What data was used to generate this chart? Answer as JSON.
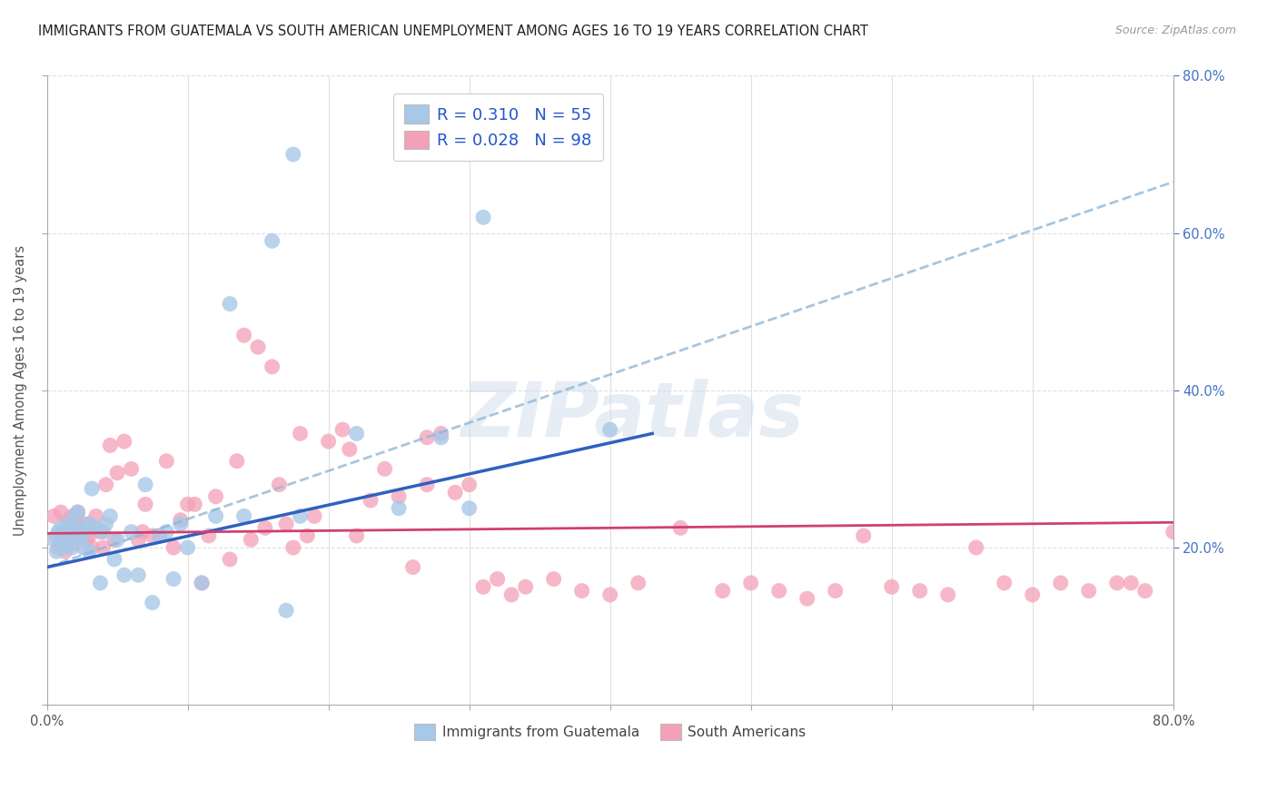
{
  "title": "IMMIGRANTS FROM GUATEMALA VS SOUTH AMERICAN UNEMPLOYMENT AMONG AGES 16 TO 19 YEARS CORRELATION CHART",
  "source": "Source: ZipAtlas.com",
  "ylabel": "Unemployment Among Ages 16 to 19 years",
  "legend_label1": "R = 0.310   N = 55",
  "legend_label2": "R = 0.028   N = 98",
  "legend_bottom1": "Immigrants from Guatemala",
  "legend_bottom2": "South Americans",
  "R_blue": 0.31,
  "N_blue": 55,
  "R_pink": 0.028,
  "N_pink": 98,
  "xlim": [
    0.0,
    0.8
  ],
  "ylim": [
    0.0,
    0.8
  ],
  "color_blue": "#a8c8e8",
  "color_pink": "#f4a0b8",
  "line_blue": "#3060c0",
  "line_pink": "#d04070",
  "line_dashed_color": "#90b8d8",
  "watermark": "ZIPatlas",
  "background_color": "#ffffff",
  "grid_color": "#e0e0e0",
  "blue_line_x0": 0.0,
  "blue_line_x1": 0.43,
  "blue_line_y0": 0.175,
  "blue_line_y1": 0.345,
  "dash_line_x0": 0.0,
  "dash_line_x1": 0.8,
  "dash_line_y0": 0.175,
  "dash_line_y1": 0.665,
  "pink_line_x0": 0.0,
  "pink_line_x1": 0.8,
  "pink_line_y0": 0.218,
  "pink_line_y1": 0.232,
  "blue_x": [
    0.005,
    0.007,
    0.008,
    0.009,
    0.01,
    0.01,
    0.012,
    0.013,
    0.015,
    0.015,
    0.016,
    0.018,
    0.018,
    0.02,
    0.02,
    0.022,
    0.022,
    0.024,
    0.025,
    0.026,
    0.028,
    0.03,
    0.03,
    0.032,
    0.035,
    0.038,
    0.04,
    0.042,
    0.045,
    0.048,
    0.05,
    0.055,
    0.06,
    0.065,
    0.07,
    0.075,
    0.08,
    0.085,
    0.09,
    0.095,
    0.1,
    0.11,
    0.12,
    0.13,
    0.14,
    0.16,
    0.17,
    0.175,
    0.18,
    0.22,
    0.25,
    0.28,
    0.3,
    0.31,
    0.4
  ],
  "blue_y": [
    0.21,
    0.195,
    0.22,
    0.215,
    0.205,
    0.225,
    0.215,
    0.2,
    0.215,
    0.23,
    0.22,
    0.225,
    0.2,
    0.24,
    0.215,
    0.22,
    0.245,
    0.22,
    0.215,
    0.2,
    0.225,
    0.23,
    0.195,
    0.275,
    0.225,
    0.155,
    0.22,
    0.23,
    0.24,
    0.185,
    0.21,
    0.165,
    0.22,
    0.165,
    0.28,
    0.13,
    0.215,
    0.22,
    0.16,
    0.23,
    0.2,
    0.155,
    0.24,
    0.51,
    0.24,
    0.59,
    0.12,
    0.7,
    0.24,
    0.345,
    0.25,
    0.34,
    0.25,
    0.62,
    0.35
  ],
  "pink_x": [
    0.005,
    0.007,
    0.008,
    0.01,
    0.01,
    0.012,
    0.013,
    0.015,
    0.015,
    0.016,
    0.018,
    0.018,
    0.02,
    0.02,
    0.022,
    0.022,
    0.024,
    0.025,
    0.026,
    0.028,
    0.03,
    0.03,
    0.032,
    0.035,
    0.038,
    0.04,
    0.042,
    0.045,
    0.048,
    0.05,
    0.055,
    0.06,
    0.065,
    0.068,
    0.07,
    0.075,
    0.08,
    0.085,
    0.09,
    0.095,
    0.1,
    0.105,
    0.11,
    0.115,
    0.12,
    0.13,
    0.135,
    0.14,
    0.145,
    0.15,
    0.155,
    0.16,
    0.165,
    0.17,
    0.175,
    0.18,
    0.185,
    0.19,
    0.2,
    0.21,
    0.215,
    0.22,
    0.23,
    0.24,
    0.25,
    0.26,
    0.27,
    0.27,
    0.28,
    0.29,
    0.3,
    0.31,
    0.32,
    0.33,
    0.34,
    0.36,
    0.38,
    0.4,
    0.42,
    0.45,
    0.48,
    0.5,
    0.52,
    0.54,
    0.56,
    0.58,
    0.6,
    0.62,
    0.64,
    0.66,
    0.68,
    0.7,
    0.72,
    0.74,
    0.76,
    0.77,
    0.78,
    0.8
  ],
  "pink_y": [
    0.24,
    0.215,
    0.2,
    0.215,
    0.245,
    0.22,
    0.195,
    0.21,
    0.235,
    0.225,
    0.215,
    0.24,
    0.205,
    0.23,
    0.225,
    0.245,
    0.22,
    0.215,
    0.23,
    0.21,
    0.215,
    0.23,
    0.2,
    0.24,
    0.22,
    0.2,
    0.28,
    0.33,
    0.21,
    0.295,
    0.335,
    0.3,
    0.21,
    0.22,
    0.255,
    0.215,
    0.215,
    0.31,
    0.2,
    0.235,
    0.255,
    0.255,
    0.155,
    0.215,
    0.265,
    0.185,
    0.31,
    0.47,
    0.21,
    0.455,
    0.225,
    0.43,
    0.28,
    0.23,
    0.2,
    0.345,
    0.215,
    0.24,
    0.335,
    0.35,
    0.325,
    0.215,
    0.26,
    0.3,
    0.265,
    0.175,
    0.34,
    0.28,
    0.345,
    0.27,
    0.28,
    0.15,
    0.16,
    0.14,
    0.15,
    0.16,
    0.145,
    0.14,
    0.155,
    0.225,
    0.145,
    0.155,
    0.145,
    0.135,
    0.145,
    0.215,
    0.15,
    0.145,
    0.14,
    0.2,
    0.155,
    0.14,
    0.155,
    0.145,
    0.155,
    0.155,
    0.145,
    0.22
  ]
}
